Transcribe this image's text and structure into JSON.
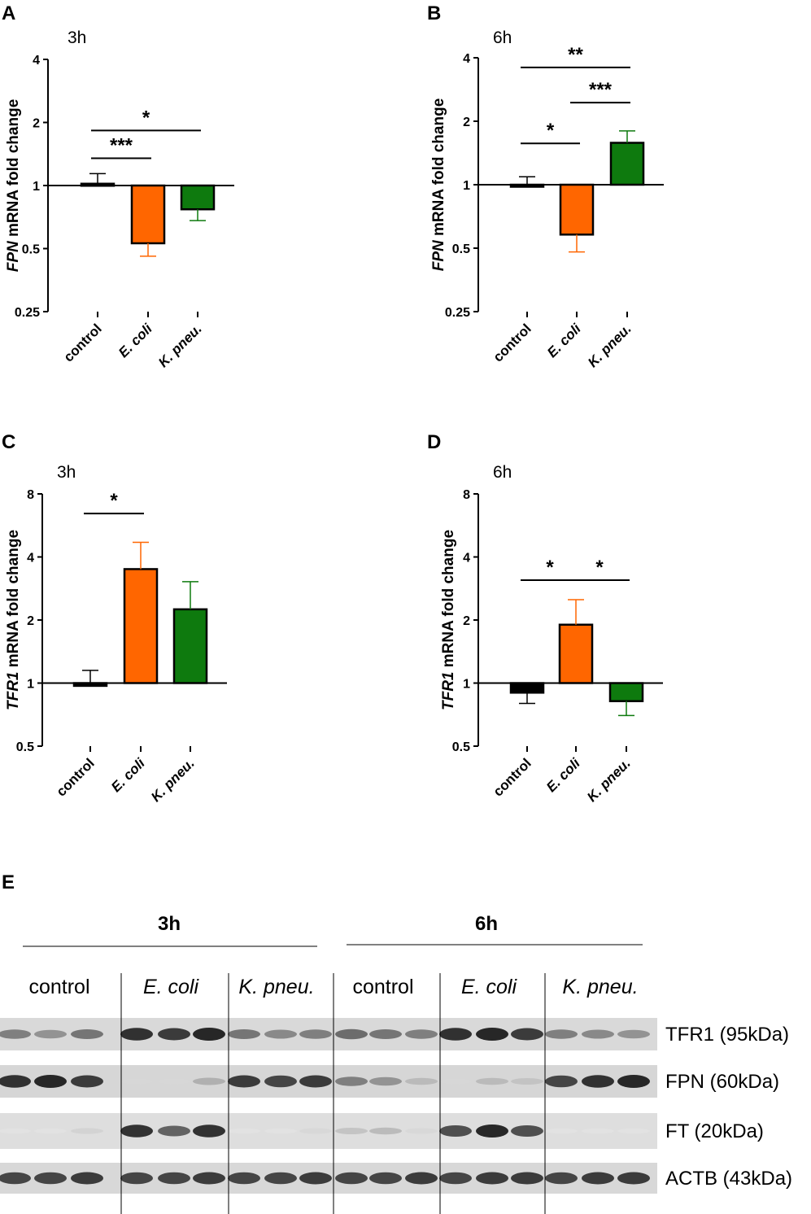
{
  "colors": {
    "control": "#000000",
    "ecoli": "#ff6600",
    "kpneu": "#0e7a0e",
    "axis": "#000000"
  },
  "chart_data": [
    {
      "panel": "A",
      "type": "bar",
      "title": "3h",
      "ylabel_gene": "FPN",
      "ylabel_rest": " mRNA fold change",
      "yscale": "log2",
      "ylim": [
        0.25,
        4
      ],
      "yticks": [
        {
          "v": 4,
          "label": "4"
        },
        {
          "v": 2,
          "label": "2"
        },
        {
          "v": 1,
          "label": "1"
        },
        {
          "v": 0.5,
          "label": "0.5"
        },
        {
          "v": 0.25,
          "label": "0.25"
        }
      ],
      "categories": [
        "control",
        "E. coli",
        "K. pneu."
      ],
      "values": [
        1.02,
        0.53,
        0.77
      ],
      "errors": [
        1.14,
        0.46,
        0.68
      ],
      "significance": [
        {
          "from": 0,
          "to": 1,
          "label": "***",
          "level": 1.35
        },
        {
          "from": 0,
          "to": 2,
          "label": "*",
          "level": 1.83
        }
      ]
    },
    {
      "panel": "B",
      "type": "bar",
      "title": "6h",
      "ylabel_gene": "FPN",
      "ylabel_rest": " mRNA fold change",
      "yscale": "log2",
      "ylim": [
        0.25,
        4
      ],
      "yticks": [
        {
          "v": 4,
          "label": "4"
        },
        {
          "v": 2,
          "label": "2"
        },
        {
          "v": 1,
          "label": "1"
        },
        {
          "v": 0.5,
          "label": "0.5"
        },
        {
          "v": 0.25,
          "label": "0.25"
        }
      ],
      "categories": [
        "control",
        "E. coli",
        "K. pneu."
      ],
      "values": [
        0.99,
        0.58,
        1.58
      ],
      "errors": [
        1.09,
        0.48,
        1.8
      ],
      "significance": [
        {
          "from": 0,
          "to": 1,
          "label": "*",
          "level": 1.57
        },
        {
          "from": 1,
          "to": 2,
          "label": "***",
          "level": 2.45
        },
        {
          "from": 0,
          "to": 2,
          "label": "**",
          "level": 3.6
        }
      ]
    },
    {
      "panel": "C",
      "type": "bar",
      "title": "3h",
      "ylabel_gene": "TFR1",
      "ylabel_rest": " mRNA fold change",
      "yscale": "log2",
      "ylim": [
        0.5,
        8
      ],
      "yticks": [
        {
          "v": 8,
          "label": "8"
        },
        {
          "v": 4,
          "label": "4"
        },
        {
          "v": 2,
          "label": "2"
        },
        {
          "v": 1,
          "label": "1"
        },
        {
          "v": 0.5,
          "label": "0.5"
        }
      ],
      "categories": [
        "control",
        "E. coli",
        "K. pneu."
      ],
      "values": [
        0.97,
        3.5,
        2.25
      ],
      "errors": [
        1.15,
        4.7,
        3.05
      ],
      "significance": [
        {
          "from": 0,
          "to": 1,
          "label": "*",
          "level": 6.45
        }
      ]
    },
    {
      "panel": "D",
      "type": "bar",
      "title": "6h",
      "ylabel_gene": "TFR1",
      "ylabel_rest": " mRNA fold change",
      "yscale": "log2",
      "ylim": [
        0.5,
        8
      ],
      "yticks": [
        {
          "v": 8,
          "label": "8"
        },
        {
          "v": 4,
          "label": "4"
        },
        {
          "v": 2,
          "label": "2"
        },
        {
          "v": 1,
          "label": "1"
        },
        {
          "v": 0.5,
          "label": "0.5"
        }
      ],
      "categories": [
        "control",
        "E. coli",
        "K. pneu."
      ],
      "values": [
        0.9,
        1.9,
        0.82
      ],
      "errors": [
        0.8,
        2.5,
        0.7
      ],
      "significance": [
        {
          "from": 0,
          "to": 1,
          "label": "*",
          "level": 3.1
        },
        {
          "from": 1,
          "to": 2,
          "label": "*",
          "level": 3.1
        }
      ]
    }
  ],
  "western": {
    "panel": "E",
    "time_labels": [
      "3h",
      "6h"
    ],
    "groups": [
      "control",
      "E. coli",
      "K. pneu.",
      "control",
      "E. coli",
      "K. pneu."
    ],
    "group_italic": [
      false,
      true,
      true,
      false,
      true,
      true
    ],
    "blots": [
      {
        "label": "TFR1 (95kDa)",
        "intensities": [
          0.55,
          0.45,
          0.6,
          0.95,
          0.9,
          1.0,
          0.6,
          0.5,
          0.55,
          0.65,
          0.6,
          0.55,
          0.95,
          1.0,
          0.9,
          0.55,
          0.5,
          0.45
        ]
      },
      {
        "label": "FPN (60kDa)",
        "intensities": [
          0.95,
          1.0,
          0.9,
          0.1,
          0.1,
          0.3,
          0.9,
          0.85,
          0.9,
          0.55,
          0.45,
          0.25,
          0.1,
          0.25,
          0.2,
          0.85,
          0.95,
          1.0
        ]
      },
      {
        "label": "FT (20kDa)",
        "intensities": [
          0.05,
          0.05,
          0.12,
          0.95,
          0.7,
          0.95,
          0.05,
          0.05,
          0.1,
          0.2,
          0.25,
          0.1,
          0.8,
          1.0,
          0.8,
          0.05,
          0.05,
          0.05
        ]
      },
      {
        "label": "ACTB (43kDa)",
        "intensities": [
          0.85,
          0.85,
          0.9,
          0.85,
          0.85,
          0.9,
          0.85,
          0.85,
          0.9,
          0.85,
          0.85,
          0.9,
          0.85,
          0.9,
          0.9,
          0.85,
          0.9,
          0.9
        ]
      }
    ]
  }
}
